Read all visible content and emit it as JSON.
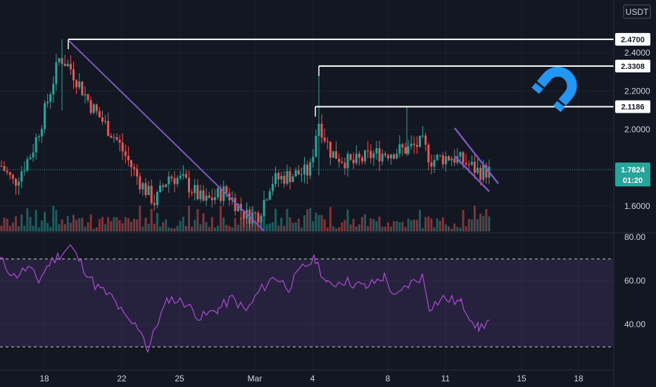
{
  "chart_data": {
    "type": "candlestick",
    "currency": "USDT",
    "price_axis": {
      "ticks": [
        "2.4000",
        "2.2000",
        "2.0000",
        "1.6000"
      ],
      "range": [
        1.5,
        2.55
      ]
    },
    "oscillator_axis": {
      "ticks": [
        "80.00",
        "60.00",
        "40.00"
      ],
      "range": [
        26,
        81
      ],
      "band": [
        70,
        30
      ]
    },
    "x_ticks": [
      "18",
      "22",
      "25",
      "Mar",
      "4",
      "8",
      "11",
      "15",
      "18"
    ],
    "last_price": {
      "value": "1.7824",
      "countdown": "01:20"
    },
    "levels": [
      {
        "value": 2.47,
        "label": "2.4700"
      },
      {
        "value": 2.3308,
        "label": "2.3308"
      },
      {
        "value": 2.1186,
        "label": "2.1186"
      }
    ],
    "colors": {
      "up": "#26a69a",
      "down": "#ef5350",
      "oscillator": "#b04ad9",
      "trendline": "#7e57c2",
      "last_price": "#26a69a",
      "logo": "#2196f3"
    },
    "logo_icon": "magnet-icon"
  }
}
